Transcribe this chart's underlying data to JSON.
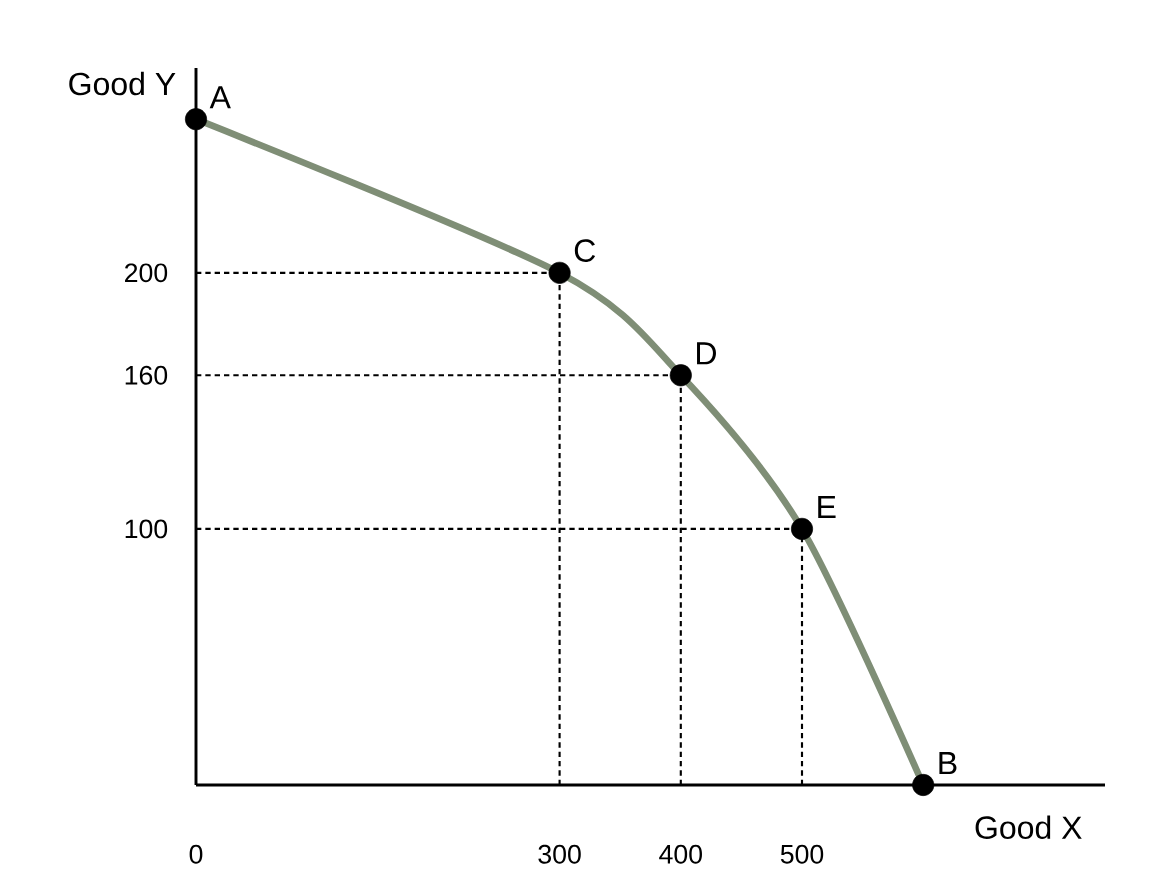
{
  "chart_data": {
    "type": "line",
    "xlabel": "Good X",
    "ylabel": "Good Y",
    "x": [
      0,
      300,
      400,
      500,
      600
    ],
    "series": [
      {
        "color": "#7f8e76",
        "values": [
          260,
          200,
          160,
          100,
          0
        ]
      }
    ],
    "xlim": [
      0,
      750
    ],
    "ylim": [
      0,
      280
    ],
    "xticks": [
      0,
      300,
      400,
      500
    ],
    "yticks": [
      100,
      160,
      200
    ],
    "marker": "circle",
    "ref_lines": [
      {
        "axis": "y",
        "value": 200,
        "line_style": "dashed"
      },
      {
        "axis": "y",
        "value": 160,
        "line_style": "dashed"
      },
      {
        "axis": "y",
        "value": 100,
        "line_style": "dashed"
      },
      {
        "axis": "x",
        "value": 300,
        "line_style": "dashed"
      },
      {
        "axis": "x",
        "value": 400,
        "line_style": "dashed"
      },
      {
        "axis": "x",
        "value": 500,
        "line_style": "dashed"
      }
    ],
    "annotations": [
      {
        "text": "A",
        "x": 0,
        "y": 260
      },
      {
        "text": "C",
        "x": 300,
        "y": 200
      },
      {
        "text": "D",
        "x": 400,
        "y": 160
      },
      {
        "text": "E",
        "x": 500,
        "y": 100
      },
      {
        "text": "B",
        "x": 600,
        "y": 0
      }
    ]
  }
}
